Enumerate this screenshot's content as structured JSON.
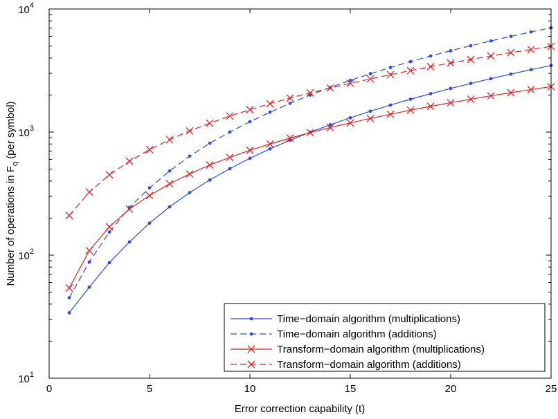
{
  "chart_data": {
    "type": "line",
    "xlabel": "Error correction capability (t)",
    "ylabel_main": "Number of operations in F",
    "ylabel_sub": "q",
    "ylabel_tail": " (per symbol)",
    "x_scale": "linear",
    "y_scale": "log",
    "xlim": [
      0,
      25
    ],
    "ylim": [
      10,
      10000
    ],
    "x_ticks": [
      0,
      5,
      10,
      15,
      20,
      25
    ],
    "x_tick_labels": [
      "0",
      "5",
      "10",
      "15",
      "20",
      "25"
    ],
    "y_ticks": [
      10,
      100,
      1000,
      10000
    ],
    "y_tick_labels": [
      {
        "base": "10",
        "exp": "1"
      },
      {
        "base": "10",
        "exp": "2"
      },
      {
        "base": "10",
        "exp": "3"
      },
      {
        "base": "10",
        "exp": "4"
      }
    ],
    "grid": false,
    "legend_position": "bottom-right",
    "x": [
      1,
      2,
      3,
      4,
      5,
      6,
      7,
      8,
      9,
      10,
      11,
      12,
      13,
      14,
      15,
      16,
      17,
      18,
      19,
      20,
      21,
      22,
      23,
      24,
      25
    ],
    "series": [
      {
        "name": "Time−domain algorithm (multiplications)",
        "color": "#2b4de0",
        "dash": "solid",
        "marker": "dot",
        "values": [
          34,
          55,
          87,
          128,
          182,
          247,
          322,
          408,
          504,
          612,
          730,
          858,
          997,
          1147,
          1306,
          1477,
          1657,
          1849,
          2050,
          2262,
          2484,
          2716,
          2959,
          3212,
          3475
        ]
      },
      {
        "name": "Time−domain algorithm (additions)",
        "color": "#2b4de0",
        "dash": "dashed",
        "marker": "dot",
        "values": [
          45,
          88,
          154,
          244,
          352,
          483,
          637,
          812,
          1001,
          1214,
          1450,
          1711,
          1997,
          2303,
          2633,
          2981,
          3350,
          3739,
          4150,
          4580,
          5032,
          5504,
          5996,
          6508,
          7040
        ]
      },
      {
        "name": "Transform−domain algorithm (multiplications)",
        "color": "#e32222",
        "dash": "solid",
        "marker": "x",
        "values": [
          54,
          109,
          170,
          237,
          305,
          380,
          457,
          540,
          622,
          712,
          800,
          893,
          990,
          1088,
          1187,
          1290,
          1397,
          1507,
          1619,
          1732,
          1850,
          1970,
          2090,
          2213,
          2340
        ]
      },
      {
        "name": "Transform−domain algorithm (additions)",
        "color": "#e32222",
        "dash": "dashed",
        "marker": "x",
        "values": [
          210,
          325,
          450,
          580,
          720,
          868,
          1022,
          1180,
          1350,
          1520,
          1700,
          1890,
          2080,
          2280,
          2490,
          2700,
          2930,
          3160,
          3400,
          3640,
          3890,
          4150,
          4420,
          4690,
          4970
        ]
      }
    ]
  }
}
